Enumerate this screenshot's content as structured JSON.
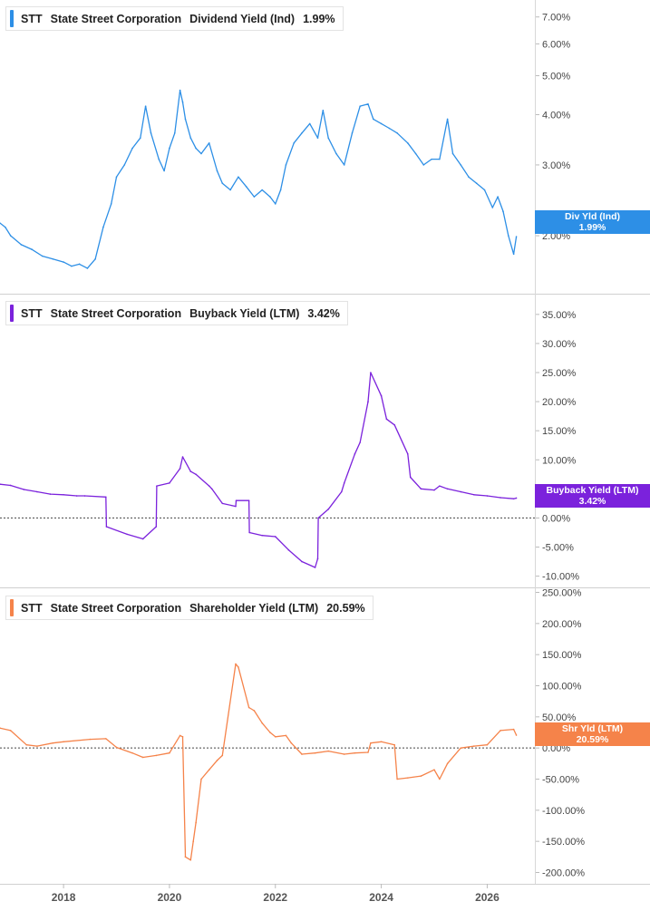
{
  "charts": [
    {
      "ticker": "STT",
      "company": "State Street Corporation",
      "metric": "Dividend Yield (Ind)",
      "value": "1.99%",
      "tag_label": "Div Yld (Ind)",
      "tag_value": "1.99%",
      "color": "#2d8fe6"
    },
    {
      "ticker": "STT",
      "company": "State Street Corporation",
      "metric": "Buyback Yield (LTM)",
      "value": "3.42%",
      "tag_label": "Buyback Yield (LTM)",
      "tag_value": "3.42%",
      "color": "#7b22dc"
    },
    {
      "ticker": "STT",
      "company": "State Street Corporation",
      "metric": "Shareholder Yield (LTM)",
      "value": "20.59%",
      "tag_label": "Shr Yld (LTM)",
      "tag_value": "20.59%",
      "color": "#f5834a"
    }
  ],
  "chart_data": [
    {
      "type": "line",
      "title": "STT State Street Corporation Dividend Yield (Ind) 1.99%",
      "y_scale": "log",
      "ylim": [
        1.45,
        7.4
      ],
      "y_ticks": [
        2.0,
        3.0,
        4.0,
        5.0,
        6.0,
        7.0
      ],
      "y_tick_labels": [
        "2.00%",
        "3.00%",
        "4.00%",
        "5.00%",
        "6.00%",
        "7.00%"
      ],
      "x_ticks": [
        "2018",
        "2020",
        "2022",
        "2024",
        "2026"
      ],
      "series": [
        {
          "name": "Div Yld (Ind)",
          "color": "#2d8fe6",
          "x": [
            2016.8,
            2016.9,
            2017.0,
            2017.2,
            2017.4,
            2017.6,
            2017.8,
            2018.0,
            2018.15,
            2018.3,
            2018.45,
            2018.6,
            2018.75,
            2018.9,
            2019.0,
            2019.15,
            2019.3,
            2019.45,
            2019.55,
            2019.65,
            2019.8,
            2019.9,
            2020.0,
            2020.1,
            2020.2,
            2020.25,
            2020.3,
            2020.4,
            2020.5,
            2020.6,
            2020.75,
            2020.9,
            2021.0,
            2021.15,
            2021.3,
            2021.45,
            2021.6,
            2021.75,
            2021.9,
            2022.0,
            2022.1,
            2022.2,
            2022.35,
            2022.5,
            2022.65,
            2022.8,
            2022.9,
            2023.0,
            2023.15,
            2023.3,
            2023.45,
            2023.6,
            2023.75,
            2023.85,
            2024.0,
            2024.15,
            2024.3,
            2024.5,
            2024.65,
            2024.8,
            2024.95,
            2025.1,
            2025.25,
            2025.35,
            2025.5,
            2025.65,
            2025.8,
            2025.95,
            2026.1,
            2026.2,
            2026.3,
            2026.4,
            2026.5,
            2026.55
          ],
          "values": [
            2.15,
            2.1,
            2.0,
            1.9,
            1.85,
            1.78,
            1.75,
            1.72,
            1.68,
            1.7,
            1.66,
            1.75,
            2.1,
            2.4,
            2.8,
            3.0,
            3.3,
            3.5,
            4.2,
            3.6,
            3.1,
            2.9,
            3.3,
            3.6,
            4.6,
            4.3,
            3.9,
            3.5,
            3.3,
            3.2,
            3.4,
            2.9,
            2.7,
            2.6,
            2.8,
            2.65,
            2.5,
            2.6,
            2.5,
            2.4,
            2.6,
            3.0,
            3.4,
            3.6,
            3.8,
            3.5,
            4.1,
            3.5,
            3.2,
            3.0,
            3.6,
            4.2,
            4.25,
            3.9,
            3.8,
            3.7,
            3.6,
            3.4,
            3.2,
            3.0,
            3.1,
            3.1,
            3.9,
            3.2,
            3.0,
            2.8,
            2.7,
            2.6,
            2.35,
            2.5,
            2.3,
            2.0,
            1.8,
            1.99
          ]
        }
      ]
    },
    {
      "type": "line",
      "title": "STT State Street Corporation Buyback Yield (LTM) 3.42%",
      "ylim": [
        -11,
        37
      ],
      "y_ticks": [
        -10,
        -5,
        0,
        5,
        10,
        15,
        20,
        25,
        30,
        35
      ],
      "y_tick_labels": [
        "-10.00%",
        "-5.00%",
        "0.00%",
        "5.00%",
        "10.00%",
        "15.00%",
        "20.00%",
        "25.00%",
        "30.00%",
        "35.00%"
      ],
      "reference_line": 0,
      "x_ticks": [
        "2018",
        "2020",
        "2022",
        "2024",
        "2026"
      ],
      "series": [
        {
          "name": "Buyback Yield (LTM)",
          "color": "#7b22dc",
          "x": [
            2016.8,
            2017.0,
            2017.25,
            2017.5,
            2017.75,
            2018.0,
            2018.25,
            2018.4,
            2018.8,
            2018.81,
            2019.2,
            2019.5,
            2019.75,
            2019.76,
            2020.0,
            2020.2,
            2020.25,
            2020.4,
            2020.5,
            2020.75,
            2020.8,
            2021.0,
            2021.25,
            2021.26,
            2021.5,
            2021.51,
            2021.75,
            2022.0,
            2022.25,
            2022.5,
            2022.75,
            2022.8,
            2022.81,
            2023.0,
            2023.25,
            2023.3,
            2023.5,
            2023.6,
            2023.75,
            2023.8,
            2024.0,
            2024.1,
            2024.25,
            2024.5,
            2024.55,
            2024.75,
            2025.0,
            2025.1,
            2025.25,
            2025.5,
            2025.75,
            2026.0,
            2026.25,
            2026.5,
            2026.55
          ],
          "values": [
            5.8,
            5.6,
            4.9,
            4.5,
            4.1,
            4.0,
            3.8,
            3.8,
            3.6,
            -1.5,
            -2.8,
            -3.6,
            -1.5,
            5.5,
            6.0,
            8.5,
            10.5,
            8.0,
            7.5,
            5.5,
            5.0,
            2.5,
            2.0,
            3.0,
            3.0,
            -2.5,
            -3.0,
            -3.2,
            -5.5,
            -7.5,
            -8.5,
            -7.0,
            0.0,
            1.5,
            4.5,
            6.0,
            11.0,
            13.0,
            20.0,
            25.0,
            21.0,
            17.0,
            16.0,
            11.0,
            7.0,
            5.0,
            4.8,
            5.5,
            5.0,
            4.5,
            4.0,
            3.8,
            3.5,
            3.3,
            3.42
          ]
        }
      ]
    },
    {
      "type": "line",
      "title": "STT State Street Corporation Shareholder Yield (LTM) 20.59%",
      "ylim": [
        -208,
        258
      ],
      "y_ticks": [
        -200,
        -150,
        -100,
        -50,
        0,
        50,
        100,
        150,
        200,
        250
      ],
      "y_tick_labels": [
        "-200.00%",
        "-150.00%",
        "-100.00%",
        "-50.00%",
        "0.00%",
        "50.00%",
        "100.00%",
        "150.00%",
        "200.00%",
        "250.00%"
      ],
      "reference_line": 0,
      "x_ticks": [
        "2018",
        "2020",
        "2022",
        "2024",
        "2026"
      ],
      "series": [
        {
          "name": "Shr Yld (LTM)",
          "color": "#f5834a",
          "x": [
            2016.8,
            2017.0,
            2017.3,
            2017.5,
            2017.8,
            2018.0,
            2018.5,
            2018.8,
            2019.0,
            2019.3,
            2019.5,
            2019.75,
            2020.0,
            2020.2,
            2020.25,
            2020.3,
            2020.4,
            2020.45,
            2020.5,
            2020.6,
            2020.75,
            2020.9,
            2021.0,
            2021.25,
            2021.3,
            2021.5,
            2021.6,
            2021.75,
            2021.9,
            2022.0,
            2022.2,
            2022.3,
            2022.5,
            2022.75,
            2023.0,
            2023.3,
            2023.5,
            2023.75,
            2023.8,
            2024.0,
            2024.25,
            2024.3,
            2024.5,
            2024.75,
            2025.0,
            2025.1,
            2025.25,
            2025.5,
            2025.75,
            2026.0,
            2026.25,
            2026.5,
            2026.55
          ],
          "values": [
            32,
            28,
            5,
            3,
            8,
            10,
            14,
            15,
            1,
            -8,
            -15,
            -12,
            -8,
            20,
            18,
            -175,
            -180,
            -150,
            -120,
            -50,
            -35,
            -20,
            -12,
            135,
            130,
            65,
            60,
            40,
            25,
            18,
            20,
            8,
            -10,
            -8,
            -5,
            -10,
            -8,
            -7,
            8,
            10,
            5,
            -50,
            -48,
            -45,
            -35,
            -50,
            -25,
            0,
            3,
            5,
            28,
            30,
            20.59
          ]
        }
      ]
    }
  ]
}
